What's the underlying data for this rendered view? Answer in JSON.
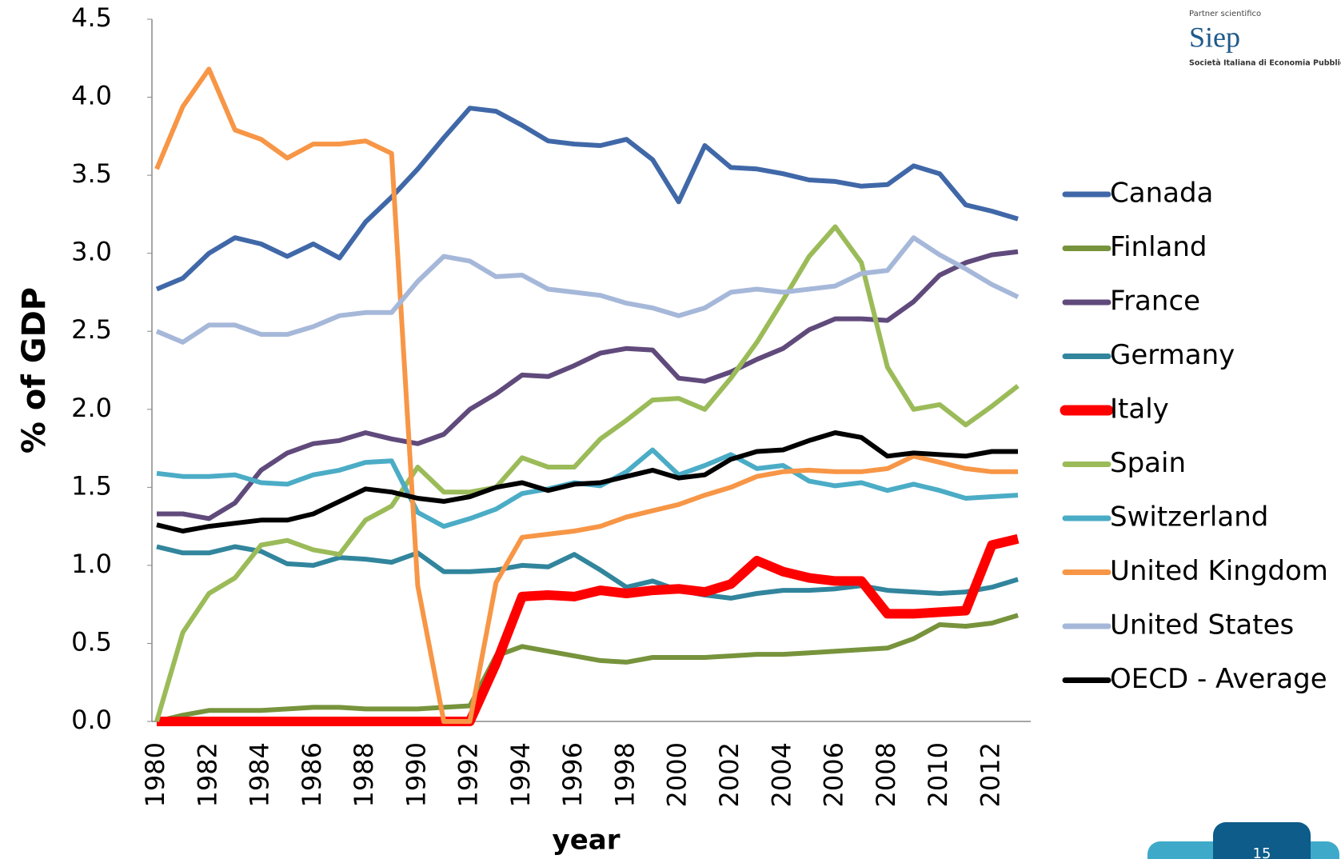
{
  "chart_data": {
    "type": "line",
    "y_label": "% of GDP",
    "x_label": "year",
    "x": [
      1980,
      1981,
      1982,
      1983,
      1984,
      1985,
      1986,
      1987,
      1988,
      1989,
      1990,
      1991,
      1992,
      1993,
      1994,
      1995,
      1996,
      1997,
      1998,
      1999,
      2000,
      2001,
      2002,
      2003,
      2004,
      2005,
      2006,
      2007,
      2008,
      2009,
      2010,
      2011,
      2012,
      2013
    ],
    "xlim": [
      1980,
      2013
    ],
    "xticks": [
      1980,
      1982,
      1984,
      1986,
      1988,
      1990,
      1992,
      1994,
      1996,
      1998,
      2000,
      2002,
      2004,
      2006,
      2008,
      2010,
      2012
    ],
    "ylim": [
      0,
      4.5
    ],
    "yticks": [
      {
        "value": 0,
        "label": "0.0"
      },
      0.5,
      {
        "value": 1,
        "label": "1.0"
      },
      1.5,
      {
        "value": 2,
        "label": "2.0"
      },
      2.5,
      {
        "value": 3,
        "label": "3.0"
      },
      3.5,
      {
        "value": 4,
        "label": "4.0"
      },
      4.5
    ],
    "grid": false,
    "legend": "right",
    "series": [
      {
        "name": "Canada",
        "color": "#4068a8",
        "line_width": 6,
        "values": [
          2.77,
          2.84,
          3.0,
          3.1,
          3.06,
          2.98,
          3.06,
          2.97,
          3.2,
          3.36,
          3.54,
          3.74,
          3.93,
          3.91,
          3.82,
          3.72,
          3.7,
          3.69,
          3.73,
          3.6,
          3.33,
          3.69,
          3.55,
          3.54,
          3.51,
          3.47,
          3.46,
          3.43,
          3.44,
          3.56,
          3.51,
          3.31,
          3.27,
          3.22
        ]
      },
      {
        "name": "Finland",
        "color": "#77933c",
        "line_width": 6,
        "values": [
          0.0,
          0.04,
          0.07,
          0.07,
          0.07,
          0.08,
          0.09,
          0.09,
          0.08,
          0.08,
          0.08,
          0.09,
          0.1,
          0.42,
          0.48,
          0.45,
          0.42,
          0.39,
          0.38,
          0.41,
          0.41,
          0.41,
          0.42,
          0.43,
          0.43,
          0.44,
          0.45,
          0.46,
          0.47,
          0.53,
          0.62,
          0.61,
          0.63,
          0.68
        ]
      },
      {
        "name": "France",
        "color": "#604a7b",
        "line_width": 6,
        "values": [
          1.33,
          1.33,
          1.3,
          1.4,
          1.61,
          1.72,
          1.78,
          1.8,
          1.85,
          1.81,
          1.78,
          1.84,
          2.0,
          2.1,
          2.22,
          2.21,
          2.28,
          2.36,
          2.39,
          2.38,
          2.2,
          2.18,
          2.24,
          2.32,
          2.39,
          2.51,
          2.58,
          2.58,
          2.57,
          2.69,
          2.86,
          2.94,
          2.99,
          3.01
        ]
      },
      {
        "name": "Germany",
        "color": "#31859c",
        "line_width": 6,
        "values": [
          1.12,
          1.08,
          1.08,
          1.12,
          1.09,
          1.01,
          1.0,
          1.05,
          1.04,
          1.02,
          1.08,
          0.96,
          0.96,
          0.97,
          1.0,
          0.99,
          1.07,
          0.97,
          0.86,
          0.9,
          0.84,
          0.81,
          0.79,
          0.82,
          0.84,
          0.84,
          0.85,
          0.87,
          0.84,
          0.83,
          0.82,
          0.83,
          0.86,
          0.91
        ]
      },
      {
        "name": "Italy",
        "color": "#ff0000",
        "line_width": 12,
        "values": [
          0,
          0,
          0,
          0,
          0,
          0,
          0,
          0,
          0,
          0,
          0,
          0,
          0,
          0.37,
          0.8,
          0.81,
          0.8,
          0.84,
          0.82,
          0.84,
          0.85,
          0.83,
          0.88,
          1.03,
          0.96,
          0.92,
          0.9,
          0.9,
          0.69,
          0.69,
          0.7,
          0.71,
          1.13,
          1.17
        ]
      },
      {
        "name": "Spain",
        "color": "#9bbb59",
        "line_width": 6,
        "values": [
          0.0,
          0.57,
          0.82,
          0.92,
          1.13,
          1.16,
          1.1,
          1.07,
          1.29,
          1.38,
          1.63,
          1.47,
          1.47,
          1.5,
          1.69,
          1.63,
          1.63,
          1.81,
          1.93,
          2.06,
          2.07,
          2.0,
          2.2,
          2.43,
          2.7,
          2.98,
          3.17,
          2.94,
          2.27,
          2.0,
          2.03,
          1.9,
          2.02,
          2.15
        ]
      },
      {
        "name": "Switzerland",
        "color": "#4bacc6",
        "line_width": 6,
        "values": [
          1.59,
          1.57,
          1.57,
          1.58,
          1.53,
          1.52,
          1.58,
          1.61,
          1.66,
          1.67,
          1.34,
          1.25,
          1.3,
          1.36,
          1.46,
          1.49,
          1.53,
          1.51,
          1.6,
          1.74,
          1.58,
          1.64,
          1.71,
          1.62,
          1.64,
          1.54,
          1.51,
          1.53,
          1.48,
          1.52,
          1.48,
          1.43,
          1.44,
          1.45
        ]
      },
      {
        "name": "United Kingdom",
        "color": "#f79646",
        "line_width": 6,
        "values": [
          3.54,
          3.94,
          4.18,
          3.79,
          3.73,
          3.61,
          3.7,
          3.7,
          3.72,
          3.64,
          0.87,
          0.0,
          0.0,
          0.89,
          1.18,
          1.2,
          1.22,
          1.25,
          1.31,
          1.35,
          1.39,
          1.45,
          1.5,
          1.57,
          1.6,
          1.61,
          1.6,
          1.6,
          1.62,
          1.7,
          1.66,
          1.62,
          1.6,
          1.6
        ]
      },
      {
        "name": "United States",
        "color": "#a6b8d9",
        "line_width": 6,
        "values": [
          2.5,
          2.43,
          2.54,
          2.54,
          2.48,
          2.48,
          2.53,
          2.6,
          2.62,
          2.62,
          2.82,
          2.98,
          2.95,
          2.85,
          2.86,
          2.77,
          2.75,
          2.73,
          2.68,
          2.65,
          2.6,
          2.65,
          2.75,
          2.77,
          2.75,
          2.77,
          2.79,
          2.87,
          2.89,
          3.1,
          2.99,
          2.9,
          2.8,
          2.72
        ]
      },
      {
        "name": "OECD - Average",
        "color": "#000000",
        "line_width": 6,
        "values": [
          1.26,
          1.22,
          1.25,
          1.27,
          1.29,
          1.29,
          1.33,
          1.41,
          1.49,
          1.47,
          1.43,
          1.41,
          1.44,
          1.5,
          1.53,
          1.48,
          1.52,
          1.53,
          1.57,
          1.61,
          1.56,
          1.58,
          1.68,
          1.73,
          1.74,
          1.8,
          1.85,
          1.82,
          1.7,
          1.72,
          1.71,
          1.7,
          1.73,
          1.73
        ]
      }
    ]
  },
  "logo": {
    "caption": "Partner scientifico",
    "name": "Siep",
    "subtitle": "Società Italiana di Economia Pubblica"
  },
  "page_number": "15"
}
